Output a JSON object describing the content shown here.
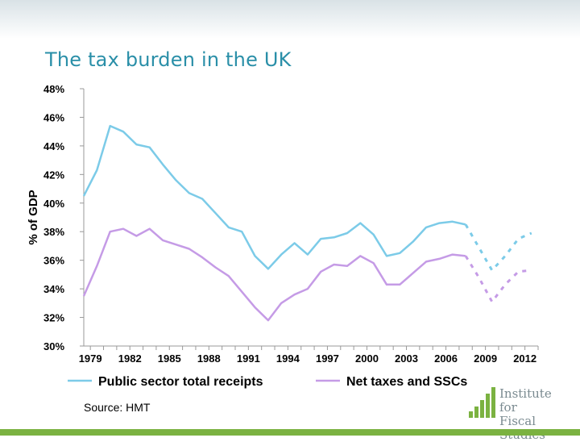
{
  "slide": {
    "title": "The tax burden in the UK",
    "source": "Source: HMT",
    "logo_text_line1": "Institute for",
    "logo_text_line2": "Fiscal Studies"
  },
  "colors": {
    "title": "#2a8fa8",
    "series_receipts": "#7ccbe8",
    "series_net": "#c59be6",
    "bottom_band": "#7bb241",
    "logo_green": "#7bb241",
    "logo_text": "#7a8a90"
  },
  "chart_data": {
    "type": "line",
    "title": "",
    "xlabel": "",
    "ylabel": "% of GDP",
    "ylim": [
      30,
      48
    ],
    "xlim": [
      1978.5,
      2013
    ],
    "yticks": [
      30,
      32,
      34,
      36,
      38,
      40,
      42,
      44,
      46,
      48
    ],
    "ytick_labels": [
      "30%",
      "32%",
      "34%",
      "36%",
      "38%",
      "40%",
      "42%",
      "44%",
      "46%",
      "48%"
    ],
    "xticks": [
      1979,
      1982,
      1985,
      1988,
      1991,
      1994,
      1997,
      2000,
      2003,
      2006,
      2009,
      2012
    ],
    "xtick_labels": [
      "1979",
      "1982",
      "1985",
      "1988",
      "1991",
      "1994",
      "1997",
      "2000",
      "2003",
      "2006",
      "2009",
      "2012"
    ],
    "grid": false,
    "legend_position": "bottom",
    "series": [
      {
        "name": "Public sector total receipts",
        "color": "#7ccbe8",
        "x": [
          1978.5,
          1979.5,
          1980.5,
          1981.5,
          1982.5,
          1983.5,
          1984.5,
          1985.5,
          1986.5,
          1987.5,
          1988.5,
          1989.5,
          1990.5,
          1991.5,
          1992.5,
          1993.5,
          1994.5,
          1995.5,
          1996.5,
          1997.5,
          1998.5,
          1999.5,
          2000.5,
          2001.5,
          2002.5,
          2003.5,
          2004.5,
          2005.5,
          2006.5,
          2007.5
        ],
        "y": [
          40.5,
          42.3,
          45.4,
          45.0,
          44.1,
          43.9,
          42.7,
          41.6,
          40.7,
          40.3,
          39.3,
          38.3,
          38.0,
          36.3,
          35.4,
          36.4,
          37.2,
          36.4,
          37.5,
          37.6,
          37.9,
          38.6,
          37.8,
          36.3,
          36.5,
          37.3,
          38.3,
          38.6,
          38.7,
          38.5
        ],
        "projection_x": [
          2007.5,
          2008.5,
          2009.5,
          2010.5,
          2011.5,
          2012.5
        ],
        "projection_y": [
          38.5,
          36.9,
          35.3,
          36.3,
          37.5,
          37.9
        ]
      },
      {
        "name": "Net taxes and SSCs",
        "color": "#c59be6",
        "x": [
          1978.5,
          1979.5,
          1980.5,
          1981.5,
          1982.5,
          1983.5,
          1984.5,
          1985.5,
          1986.5,
          1987.5,
          1988.5,
          1989.5,
          1990.5,
          1991.5,
          1992.5,
          1993.5,
          1994.5,
          1995.5,
          1996.5,
          1997.5,
          1998.5,
          1999.5,
          2000.5,
          2001.5,
          2002.5,
          2003.5,
          2004.5,
          2005.5,
          2006.5,
          2007.5
        ],
        "y": [
          33.5,
          35.6,
          38.0,
          38.2,
          37.7,
          38.2,
          37.4,
          37.1,
          36.8,
          36.2,
          35.5,
          34.9,
          33.8,
          32.7,
          31.8,
          33.0,
          33.6,
          34.0,
          35.2,
          35.7,
          35.6,
          36.3,
          35.8,
          34.3,
          34.3,
          35.1,
          35.9,
          36.1,
          36.4,
          36.3
        ],
        "projection_x": [
          2007.5,
          2008.5,
          2009.5,
          2010.5,
          2011.5,
          2012.5
        ],
        "projection_y": [
          36.3,
          34.8,
          33.1,
          34.3,
          35.2,
          35.3
        ]
      }
    ]
  }
}
